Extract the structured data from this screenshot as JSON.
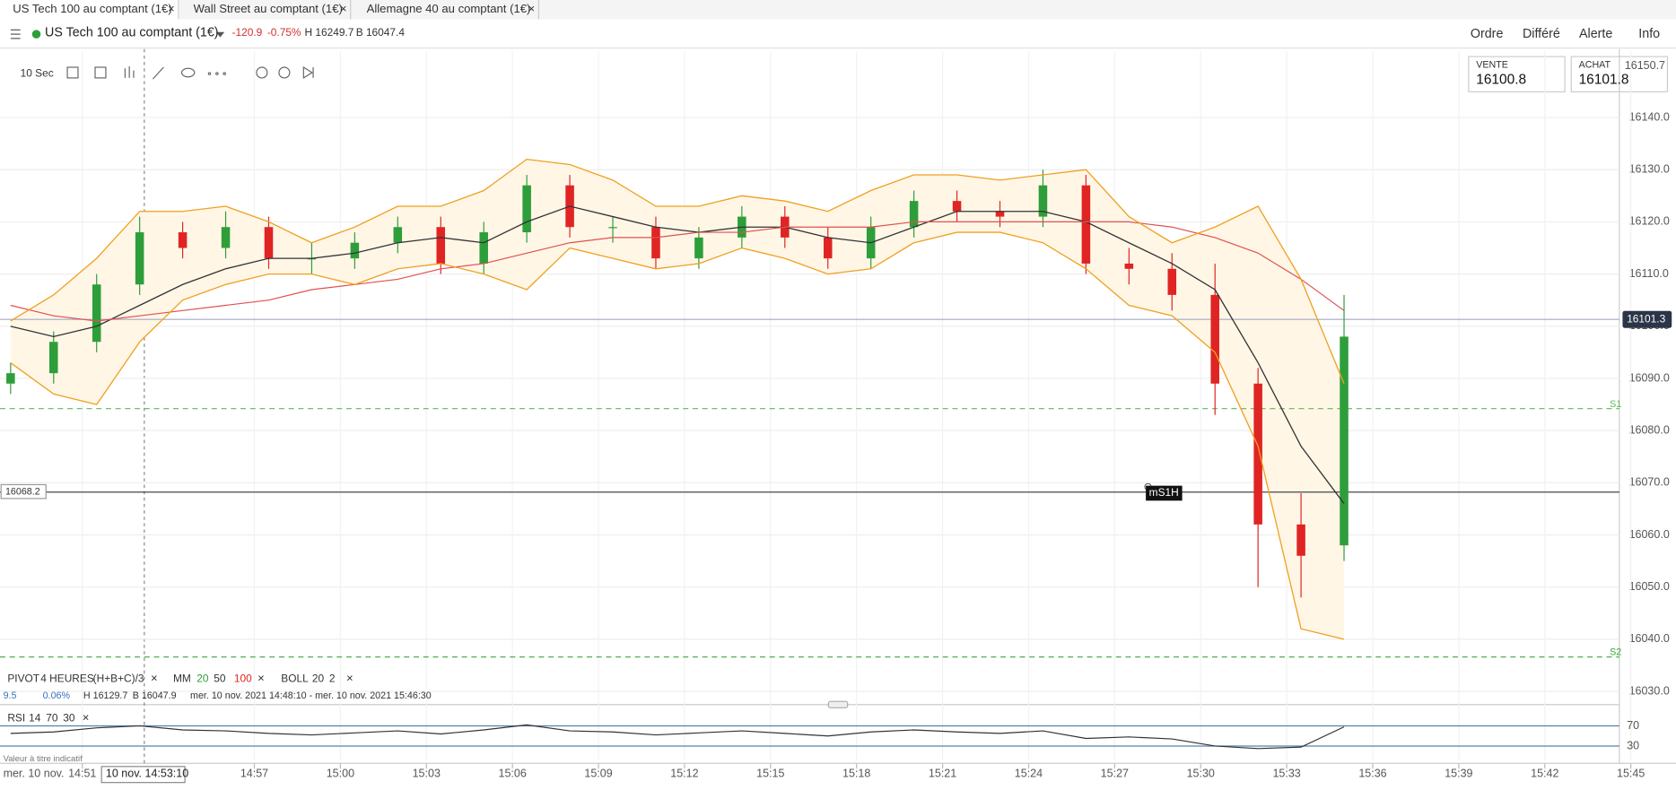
{
  "tabs": [
    "US Tech 100 au comptant (1€)",
    "Wall Street au comptant (1€)",
    "Allemagne 40 au comptant (1€)"
  ],
  "instrument": {
    "name": "US Tech 100 au comptant (1€)",
    "change": "-120.9",
    "change_pct": "-0.75%",
    "high": "H 16249.7",
    "low": "B 16047.4"
  },
  "menu": [
    "Ordre",
    "Différé",
    "Alerte",
    "Info"
  ],
  "quotes": {
    "sell_label": "VENTE",
    "sell": "16100.8",
    "buy_label": "ACHAT",
    "buy": "16101.8"
  },
  "interval": "10 Sec",
  "indicators": {
    "pivot": "PIVOT",
    "pivot_period": "4 HEURES",
    "pivot_formula": "(H+B+C)/3",
    "mm": "MM",
    "mm_periods": [
      "20",
      "50",
      "100"
    ],
    "boll": "BOLL",
    "boll_params": [
      "20",
      "2"
    ],
    "rsi": "RSI",
    "rsi_params": [
      "14",
      "70",
      "30"
    ]
  },
  "info_line": [
    "9.5",
    "0.06%",
    "H 16129.7",
    "B 16047.9",
    "mer. 10 nov. 2021 14:48:10 - mer. 10 nov. 2021 15:46:30"
  ],
  "disclaimer": "Valeur à titre indicatif",
  "date_label": "mer. 10 nov.",
  "crosshair_label": "10 nov. 14:53:10",
  "chart_data": {
    "type": "candlestick",
    "x": [
      888.5,
      890,
      891.5,
      893,
      894.5,
      896,
      897.5,
      899,
      900.5,
      902,
      903.5,
      905,
      906.5,
      908,
      909.5,
      911,
      912.5,
      914,
      915.5,
      917,
      918.5,
      920,
      921.5,
      923,
      924.5,
      926,
      927.5,
      929,
      930.5,
      932,
      933.5,
      935
    ],
    "open": [
      16089,
      16091,
      16097,
      16108,
      16118,
      16115,
      16119,
      16113,
      16113,
      16116,
      16119,
      16112,
      16118,
      16127,
      16119,
      16119,
      16113,
      16117,
      16121,
      16117,
      16113,
      16119,
      16124,
      16122,
      16121,
      16127,
      16112,
      16111,
      16106,
      16089,
      16062,
      16058
    ],
    "high": [
      16093,
      16099,
      16110,
      16121,
      16120,
      16122,
      16121,
      16116,
      16118,
      16121,
      16121,
      16120,
      16129,
      16129,
      16121,
      16121,
      16119,
      16123,
      16123,
      16119,
      16121,
      16126,
      16126,
      16124,
      16130,
      16129,
      16115,
      16114,
      16112,
      16092,
      16068,
      16106
    ],
    "low": [
      16087,
      16089,
      16095,
      16106,
      16113,
      16113,
      16111,
      16110,
      16111,
      16114,
      16110,
      16110,
      16116,
      16117,
      16116,
      16111,
      16111,
      16115,
      16115,
      16111,
      16111,
      16117,
      16120,
      16119,
      16119,
      16110,
      16108,
      16103,
      16083,
      16050,
      16048,
      16055
    ],
    "close": [
      16091,
      16097,
      16108,
      16118,
      16115,
      16119,
      16113,
      16113,
      16116,
      16119,
      16112,
      16118,
      16127,
      16119,
      16119,
      16113,
      16117,
      16121,
      16117,
      16113,
      16119,
      16124,
      16122,
      16121,
      16127,
      16112,
      16111,
      16106,
      16089,
      16062,
      16056,
      16098
    ],
    "up_color": "#2e9e3a",
    "down_color": "#e02424",
    "series": [
      {
        "color": "#333333",
        "values": [
          16100,
          16098,
          16100,
          16104,
          16108,
          16111,
          16113,
          16113,
          16114,
          16116,
          16117,
          16116,
          16120,
          16123,
          16121,
          16119,
          16118,
          16119,
          16119,
          16117,
          16116,
          16119,
          16122,
          16122,
          16122,
          16120,
          16116,
          16112,
          16107,
          16093,
          16077,
          16066
        ]
      },
      {
        "color": "#e05050",
        "values": [
          16104,
          16102,
          16101,
          16102,
          16103,
          16104,
          16105,
          16107,
          16108,
          16109,
          16111,
          16112,
          16114,
          16116,
          16117,
          16117,
          16118,
          16118,
          16119,
          16119,
          16119,
          16120,
          16120,
          16120,
          16120,
          16120,
          16120,
          16119,
          16117,
          16114,
          16109,
          16103
        ]
      },
      {
        "color": "#f0a020",
        "values": [
          16101,
          16106,
          16113,
          16122,
          16122,
          16123,
          16120,
          16116,
          16119,
          16123,
          16123,
          16126,
          16132,
          16131,
          16128,
          16123,
          16123,
          16125,
          16124,
          16122,
          16126,
          16129,
          16129,
          16128,
          16129,
          16130,
          16121,
          16116,
          16119,
          16123,
          16109,
          16089
        ]
      },
      {
        "color": "#f0a020",
        "values": [
          16093,
          16087,
          16085,
          16097,
          16105,
          16108,
          16110,
          16110,
          16108,
          16111,
          16112,
          16110,
          16107,
          16115,
          16113,
          16111,
          16112,
          16115,
          16113,
          16110,
          16111,
          16116,
          16118,
          16118,
          16116,
          16111,
          16104,
          16102,
          16095,
          16077,
          16042,
          16040
        ]
      }
    ],
    "xlim": [
      888.13,
      944.6
    ],
    "xticks": [
      {
        "value": 891,
        "label": "14:51"
      },
      {
        "value": 897,
        "label": "14:57"
      },
      {
        "value": 900,
        "label": "15:00"
      },
      {
        "value": 903,
        "label": "15:03"
      },
      {
        "value": 906,
        "label": "15:06"
      },
      {
        "value": 909,
        "label": "15:09"
      },
      {
        "value": 912,
        "label": "15:12"
      },
      {
        "value": 915,
        "label": "15:15"
      },
      {
        "value": 918,
        "label": "15:18"
      },
      {
        "value": 921,
        "label": "15:21"
      },
      {
        "value": 924,
        "label": "15:24"
      },
      {
        "value": 927,
        "label": "15:27"
      },
      {
        "value": 930,
        "label": "15:30"
      },
      {
        "value": 933,
        "label": "15:33"
      },
      {
        "value": 936,
        "label": "15:36"
      },
      {
        "value": 939,
        "label": "15:39"
      },
      {
        "value": 942,
        "label": "15:42"
      },
      {
        "value": 945,
        "label": "15:45"
      }
    ],
    "ylim": [
      16028.5,
      16152.7
    ],
    "yticks": [
      {
        "value": 16030,
        "label": "16030.0"
      },
      {
        "value": 16040,
        "label": "16040.0"
      },
      {
        "value": 16050,
        "label": "16050.0"
      },
      {
        "value": 16060,
        "label": "16060.0"
      },
      {
        "value": 16070,
        "label": "16070.0"
      },
      {
        "value": 16080,
        "label": "16080.0"
      },
      {
        "value": 16090,
        "label": "16090.0"
      },
      {
        "value": 16100,
        "label": "16100.0"
      },
      {
        "value": 16110,
        "label": "16110.0"
      },
      {
        "value": 16120,
        "label": "16120.0"
      },
      {
        "value": 16130,
        "label": "16130.0"
      },
      {
        "value": 16140,
        "label": "16140.0"
      }
    ],
    "grid": true,
    "top_price": 16150.7,
    "last_price": 16101.3,
    "levels": [
      {
        "label": "S1",
        "value": 16084.2,
        "color": "#5cb85c"
      },
      {
        "label": "S2",
        "value": 16036.6,
        "color": "#3aa53a"
      }
    ],
    "marker": {
      "label": "mS1H",
      "value": 16068.2
    },
    "rsi": {
      "values": [
        55,
        58,
        66,
        70,
        62,
        60,
        55,
        52,
        56,
        60,
        54,
        62,
        72,
        60,
        58,
        52,
        56,
        60,
        55,
        50,
        58,
        62,
        58,
        55,
        60,
        45,
        48,
        44,
        30,
        25,
        28,
        68
      ],
      "ylim": [
        0,
        100
      ],
      "yticks": [
        70,
        30
      ],
      "color": "#333333"
    }
  }
}
